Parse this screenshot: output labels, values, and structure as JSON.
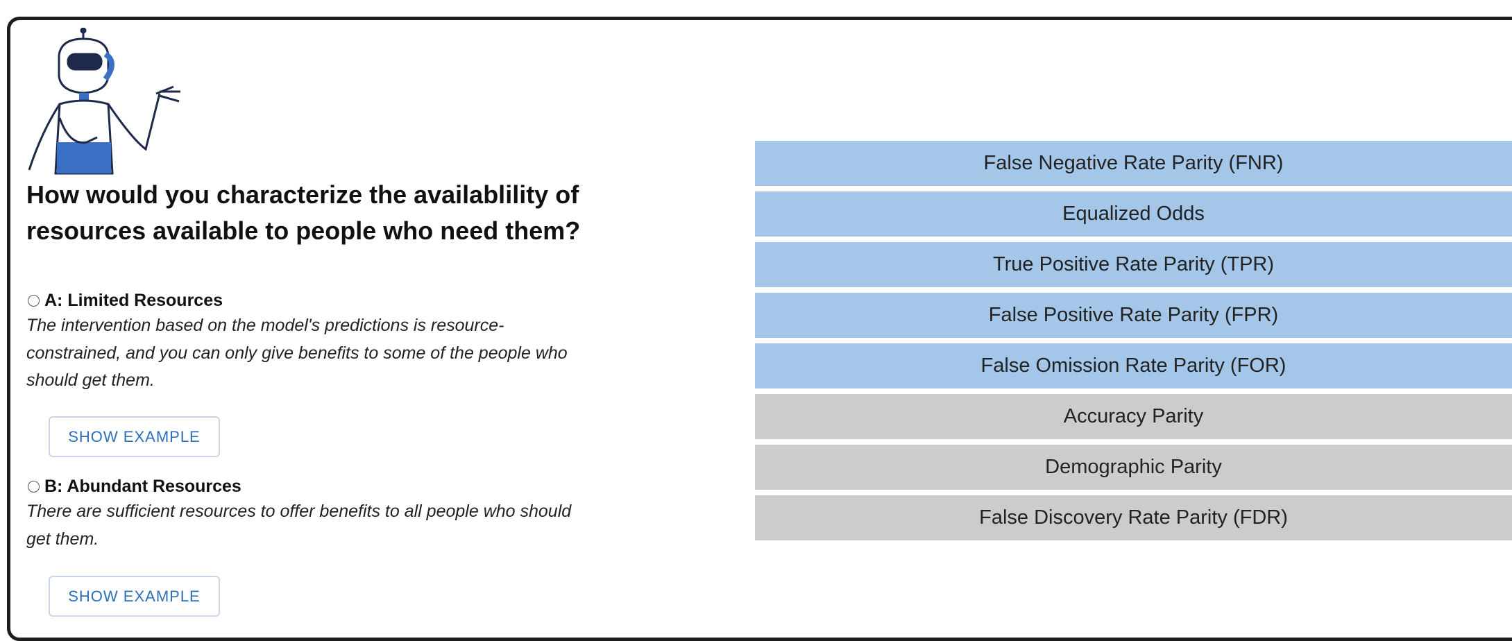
{
  "question": "How would you characterize the availablility of resources available to people who need them?",
  "options": [
    {
      "label": "A: Limited Resources",
      "description": "The intervention based on the model's predictions is resource-constrained, and you can only give benefits to some of the people who should get them.",
      "button": "SHOW EXAMPLE"
    },
    {
      "label": "B: Abundant Resources",
      "description": "There are sufficient resources to offer benefits to all people who should get them.",
      "button": "SHOW EXAMPLE"
    }
  ],
  "metrics": [
    {
      "label": "False Negative Rate Parity (FNR)",
      "color": "#a3c6e9"
    },
    {
      "label": "Equalized Odds",
      "color": "#a3c6e9"
    },
    {
      "label": "True Positive Rate Parity (TPR)",
      "color": "#a3c6e9"
    },
    {
      "label": "False Positive Rate Parity (FPR)",
      "color": "#a3c6e9"
    },
    {
      "label": "False Omission Rate Parity (FOR)",
      "color": "#a3c6e9"
    },
    {
      "label": "Accuracy Parity",
      "color": "#cccccc"
    },
    {
      "label": "Demographic Parity",
      "color": "#cccccc"
    },
    {
      "label": "False Discovery Rate Parity (FDR)",
      "color": "#cccccc"
    }
  ]
}
